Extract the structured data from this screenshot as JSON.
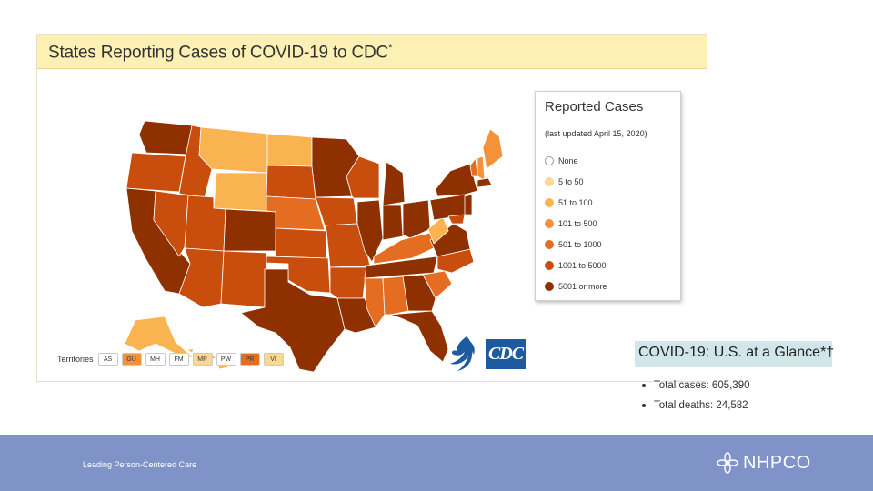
{
  "map": {
    "title": "States Reporting Cases of COVID-19 to CDC",
    "title_mark": "*"
  },
  "legend": {
    "title": "Reported Cases",
    "subtitle": "(last updated April 15, 2020)",
    "items": [
      {
        "label": "None",
        "color": "#ffffff"
      },
      {
        "label": "5 to 50",
        "color": "#fcd892"
      },
      {
        "label": "51 to 100",
        "color": "#f9b451"
      },
      {
        "label": "101 to 500",
        "color": "#f3923a"
      },
      {
        "label": "501 to 1000",
        "color": "#e56d22"
      },
      {
        "label": "1001 to 5000",
        "color": "#c94e0d"
      },
      {
        "label": "5001 or more",
        "color": "#8e3000"
      }
    ]
  },
  "territories": {
    "label": "Territories",
    "items": [
      {
        "code": "AS",
        "color": "#ffffff"
      },
      {
        "code": "GU",
        "color": "#f3923a"
      },
      {
        "code": "MH",
        "color": "#ffffff"
      },
      {
        "code": "FM",
        "color": "#ffffff"
      },
      {
        "code": "MP",
        "color": "#fcd892"
      },
      {
        "code": "PW",
        "color": "#ffffff"
      },
      {
        "code": "PR",
        "color": "#e56d22"
      },
      {
        "code": "VI",
        "color": "#fcd892"
      }
    ]
  },
  "logos": {
    "cdc": "CDC"
  },
  "glance": {
    "title": "COVID-19: U.S. at a Glance*†",
    "total_cases": "Total cases: 605,390",
    "total_deaths": "Total deaths: 24,582"
  },
  "footer": {
    "tagline": "Leading Person-Centered Care",
    "brand": "NHPCO",
    "background": "#7f93c9"
  },
  "colors": {
    "dark": "#8e3000",
    "mid_dark": "#c94e0d",
    "mid": "#e56d22",
    "light": "#f9b451",
    "pale": "#fcd892"
  }
}
